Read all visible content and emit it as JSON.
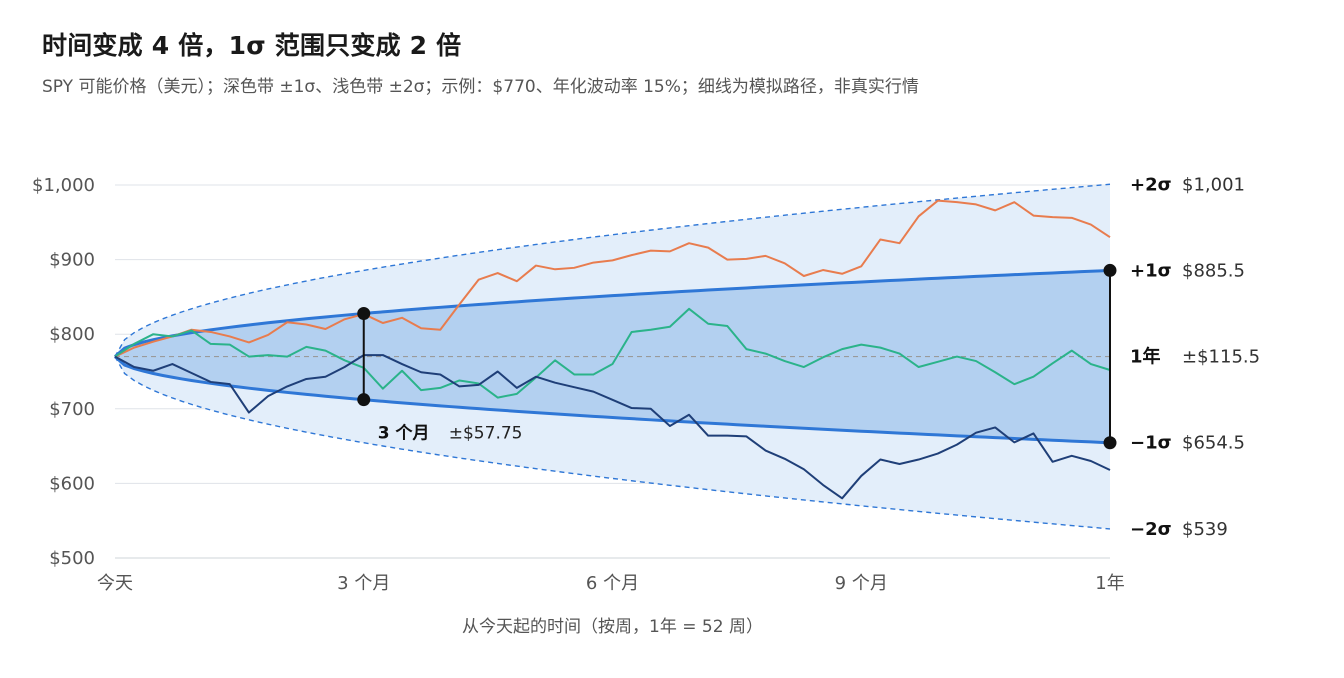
{
  "title": "时间变成 4 倍，1σ 范围只变成 2 倍",
  "subtitle": "SPY 可能价格（美元）；深色带 ±1σ、浅色带 ±2σ；示例：$770、年化波动率 15%；细线为模拟路径，非真实行情",
  "colors": {
    "band1": "#b3d0f0",
    "band2": "#e3eefa",
    "sigma1_line": "#2f77d6",
    "sigma2_line": "#2f77d6",
    "grid": "#dfe3e8",
    "center": "#9a9a9a",
    "marker": "#111111",
    "series": [
      "#e87c4e",
      "#2bb38a",
      "#1f3f78"
    ]
  },
  "chart_data": {
    "type": "line",
    "xlabel": "从今天起的时间（按周，1年 = 52 周）",
    "ylabel": "",
    "xlim": [
      0,
      52
    ],
    "ylim": [
      500,
      1000
    ],
    "y_ticks": [
      {
        "value": 1000,
        "label": "$1,000"
      },
      {
        "value": 900,
        "label": "$900"
      },
      {
        "value": 800,
        "label": "$800"
      },
      {
        "value": 700,
        "label": "$700"
      },
      {
        "value": 600,
        "label": "$600"
      },
      {
        "value": 500,
        "label": "$500"
      }
    ],
    "x_ticks": [
      {
        "value": 0,
        "label": "今天"
      },
      {
        "value": 13,
        "label": "3 个月"
      },
      {
        "value": 26,
        "label": "6 个月"
      },
      {
        "value": 39,
        "label": "9 个月"
      },
      {
        "value": 52,
        "label": "1年"
      }
    ],
    "grid": true,
    "model": {
      "start_price": 770,
      "annual_volatility": 0.15,
      "weeks_per_year": 52
    },
    "band_end_labels": [
      {
        "sigma": "+2σ",
        "value_label": "$1,001",
        "value": 1001
      },
      {
        "sigma": "+1σ",
        "value_label": "$885.5",
        "value": 885.5
      },
      {
        "sigma": "1年",
        "value_label": "±$115.5",
        "value": 770
      },
      {
        "sigma": "−1σ",
        "value_label": "$654.5",
        "value": 654.5
      },
      {
        "sigma": "−2σ",
        "value_label": "$539",
        "value": 539
      }
    ],
    "annotations": [
      {
        "week": 13,
        "low": 712.25,
        "high": 827.75,
        "label": "3 个月",
        "value_label": "±$57.75"
      },
      {
        "week": 52,
        "low": 654.5,
        "high": 885.5,
        "label": "1年",
        "value_label": "±$115.5"
      }
    ],
    "series": [
      {
        "x": [
          0,
          1,
          2,
          3,
          4,
          5,
          6,
          7,
          8,
          9,
          10,
          11,
          12,
          13,
          14,
          15,
          16,
          17,
          18,
          19,
          20,
          21,
          22,
          23,
          24,
          25,
          26,
          27,
          28,
          29,
          30,
          31,
          32,
          33,
          34,
          35,
          36,
          37,
          38,
          39,
          40,
          41,
          42,
          43,
          44,
          45,
          46,
          47,
          48,
          49,
          50,
          51,
          52
        ],
        "values": [
          770,
          782,
          790,
          797,
          806,
          803,
          797,
          789,
          799,
          816,
          813,
          807,
          820,
          827,
          815,
          822,
          808,
          806,
          840,
          873,
          882,
          871,
          892,
          887,
          889,
          896,
          899,
          906,
          912,
          911,
          922,
          916,
          900,
          901,
          905,
          895,
          878,
          886,
          881,
          891,
          927,
          922,
          958,
          979,
          977,
          974,
          966,
          977,
          959,
          957,
          956,
          947,
          930
        ]
      },
      {
        "x": [
          0,
          1,
          2,
          3,
          4,
          5,
          6,
          7,
          8,
          9,
          10,
          11,
          12,
          13,
          14,
          15,
          16,
          17,
          18,
          19,
          20,
          21,
          22,
          23,
          24,
          25,
          26,
          27,
          28,
          29,
          30,
          31,
          32,
          33,
          34,
          35,
          36,
          37,
          38,
          39,
          40,
          41,
          42,
          43,
          44,
          45,
          46,
          47,
          48,
          49,
          50,
          51,
          52
        ],
        "values": [
          770,
          787,
          800,
          797,
          805,
          787,
          786,
          770,
          772,
          770,
          783,
          778,
          765,
          755,
          727,
          751,
          725,
          728,
          738,
          734,
          715,
          720,
          742,
          765,
          746,
          746,
          760,
          803,
          806,
          810,
          834,
          814,
          811,
          780,
          774,
          764,
          756,
          769,
          780,
          786,
          782,
          774,
          756,
          763,
          770,
          764,
          749,
          733,
          743,
          761,
          778,
          760,
          752
        ]
      },
      {
        "x": [
          0,
          1,
          2,
          3,
          4,
          5,
          6,
          7,
          8,
          9,
          10,
          11,
          12,
          13,
          14,
          15,
          16,
          17,
          18,
          19,
          20,
          21,
          22,
          23,
          24,
          25,
          26,
          27,
          28,
          29,
          30,
          31,
          32,
          33,
          34,
          35,
          36,
          37,
          38,
          39,
          40,
          41,
          42,
          43,
          44,
          45,
          46,
          47,
          48,
          49,
          50,
          51,
          52
        ],
        "values": [
          770,
          756,
          751,
          760,
          748,
          736,
          733,
          695,
          717,
          730,
          740,
          743,
          756,
          772,
          772,
          760,
          749,
          746,
          730,
          732,
          750,
          728,
          743,
          735,
          729,
          723,
          712,
          701,
          700,
          677,
          692,
          664,
          664,
          663,
          644,
          633,
          619,
          598,
          580,
          610,
          632,
          626,
          632,
          640,
          652,
          668,
          675,
          655,
          667,
          629,
          637,
          630,
          618
        ]
      }
    ]
  }
}
